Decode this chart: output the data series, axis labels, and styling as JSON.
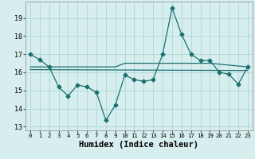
{
  "line1_x": [
    0,
    1,
    2,
    3,
    4,
    5,
    6,
    7,
    8,
    9,
    10,
    11,
    12,
    13,
    14,
    15,
    16,
    17,
    18,
    19,
    20,
    21,
    22,
    23
  ],
  "line1_y": [
    17.0,
    16.7,
    16.3,
    15.2,
    14.7,
    15.3,
    15.2,
    14.9,
    13.35,
    14.2,
    15.85,
    15.6,
    15.5,
    15.6,
    17.0,
    19.55,
    18.1,
    17.0,
    16.65,
    16.65,
    16.0,
    15.9,
    15.35,
    16.3
  ],
  "line2_x": [
    0,
    2,
    9,
    10,
    19,
    23
  ],
  "line2_y": [
    16.3,
    16.3,
    16.3,
    16.5,
    16.5,
    16.3
  ],
  "line3_x": [
    0,
    23
  ],
  "line3_y": [
    16.15,
    16.1
  ],
  "line_color": "#1a7070",
  "bg_color": "#d7eeee",
  "grid_color": "#b0d5d5",
  "marker": "D",
  "marker_size": 2.5,
  "xlabel": "Humidex (Indice chaleur)",
  "xlabel_fontsize": 7.5,
  "yticks": [
    13,
    14,
    15,
    16,
    17,
    18,
    19
  ],
  "xticks": [
    0,
    1,
    2,
    3,
    4,
    5,
    6,
    7,
    8,
    9,
    10,
    11,
    12,
    13,
    14,
    15,
    16,
    17,
    18,
    19,
    20,
    21,
    22,
    23
  ],
  "ylim": [
    12.8,
    19.9
  ],
  "xlim": [
    -0.5,
    23.5
  ]
}
